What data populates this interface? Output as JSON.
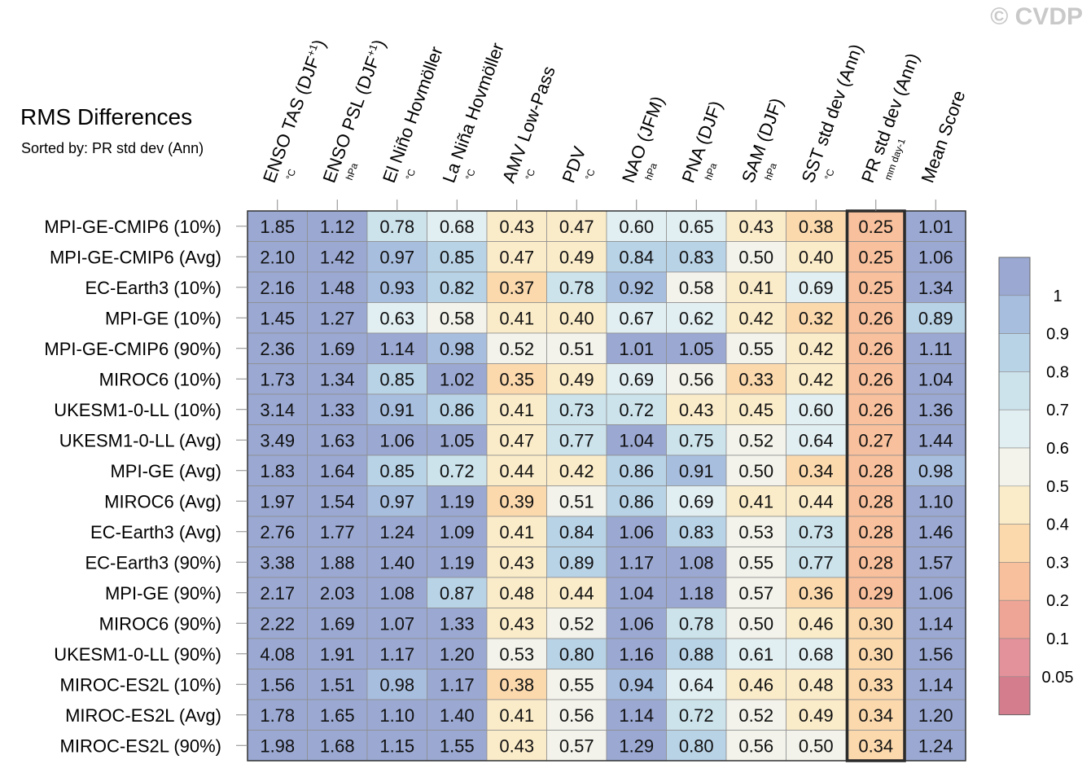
{
  "title": "RMS Differences",
  "subtitle": "Sorted by: PR std dev (Ann)",
  "watermark": "© CVDP",
  "chart_data": {
    "type": "heatmap",
    "columns": [
      {
        "name": "ENSO TAS (DJF+1)",
        "units": "°C"
      },
      {
        "name": "ENSO PSL (DJF+1)",
        "units": "hPa"
      },
      {
        "name": "El Niño Hovmöller",
        "units": "°C"
      },
      {
        "name": "La Niña Hovmöller",
        "units": "°C"
      },
      {
        "name": "AMV Low-Pass",
        "units": "°C"
      },
      {
        "name": "PDV",
        "units": "°C"
      },
      {
        "name": "NAO (JFM)",
        "units": "hPa"
      },
      {
        "name": "PNA (DJF)",
        "units": "hPa"
      },
      {
        "name": "SAM (DJF)",
        "units": "hPa"
      },
      {
        "name": "SST std dev (Ann)",
        "units": "°C"
      },
      {
        "name": "PR std dev (Ann)",
        "units": "mm day-1"
      },
      {
        "name": "Mean Score",
        "units": ""
      }
    ],
    "rows": [
      "MPI-GE-CMIP6 (10%)",
      "MPI-GE-CMIP6 (Avg)",
      "EC-Earth3 (10%)",
      "MPI-GE (10%)",
      "MPI-GE-CMIP6 (90%)",
      "MIROC6 (10%)",
      "UKESM1-0-LL (10%)",
      "UKESM1-0-LL (Avg)",
      "MPI-GE (Avg)",
      "MIROC6 (Avg)",
      "EC-Earth3 (Avg)",
      "EC-Earth3 (90%)",
      "MPI-GE (90%)",
      "MIROC6 (90%)",
      "UKESM1-0-LL (90%)",
      "MIROC-ES2L (10%)",
      "MIROC-ES2L (Avg)",
      "MIROC-ES2L (90%)"
    ],
    "values": [
      [
        "1.85",
        "1.12",
        "0.78",
        "0.68",
        "0.43",
        "0.47",
        "0.60",
        "0.65",
        "0.43",
        "0.38",
        "0.25",
        "1.01"
      ],
      [
        "2.10",
        "1.42",
        "0.97",
        "0.85",
        "0.47",
        "0.49",
        "0.84",
        "0.83",
        "0.50",
        "0.40",
        "0.25",
        "1.06"
      ],
      [
        "2.16",
        "1.48",
        "0.93",
        "0.82",
        "0.37",
        "0.78",
        "0.92",
        "0.58",
        "0.41",
        "0.69",
        "0.25",
        "1.34"
      ],
      [
        "1.45",
        "1.27",
        "0.63",
        "0.58",
        "0.41",
        "0.40",
        "0.67",
        "0.62",
        "0.42",
        "0.32",
        "0.26",
        "0.89"
      ],
      [
        "2.36",
        "1.69",
        "1.14",
        "0.98",
        "0.52",
        "0.51",
        "1.01",
        "1.05",
        "0.55",
        "0.42",
        "0.26",
        "1.11"
      ],
      [
        "1.73",
        "1.34",
        "0.85",
        "1.02",
        "0.35",
        "0.49",
        "0.69",
        "0.56",
        "0.33",
        "0.42",
        "0.26",
        "1.04"
      ],
      [
        "3.14",
        "1.33",
        "0.91",
        "0.86",
        "0.41",
        "0.73",
        "0.72",
        "0.43",
        "0.45",
        "0.60",
        "0.26",
        "1.36"
      ],
      [
        "3.49",
        "1.63",
        "1.06",
        "1.05",
        "0.47",
        "0.77",
        "1.04",
        "0.75",
        "0.52",
        "0.64",
        "0.27",
        "1.44"
      ],
      [
        "1.83",
        "1.64",
        "0.85",
        "0.72",
        "0.44",
        "0.42",
        "0.86",
        "0.91",
        "0.50",
        "0.34",
        "0.28",
        "0.98"
      ],
      [
        "1.97",
        "1.54",
        "0.97",
        "1.19",
        "0.39",
        "0.51",
        "0.86",
        "0.69",
        "0.41",
        "0.44",
        "0.28",
        "1.10"
      ],
      [
        "2.76",
        "1.77",
        "1.24",
        "1.09",
        "0.41",
        "0.84",
        "1.06",
        "0.83",
        "0.53",
        "0.73",
        "0.28",
        "1.46"
      ],
      [
        "3.38",
        "1.88",
        "1.40",
        "1.19",
        "0.43",
        "0.89",
        "1.17",
        "1.08",
        "0.55",
        "0.77",
        "0.28",
        "1.57"
      ],
      [
        "2.17",
        "2.03",
        "1.08",
        "0.87",
        "0.48",
        "0.44",
        "1.04",
        "1.18",
        "0.57",
        "0.36",
        "0.29",
        "1.06"
      ],
      [
        "2.22",
        "1.69",
        "1.07",
        "1.33",
        "0.43",
        "0.52",
        "1.06",
        "0.78",
        "0.50",
        "0.46",
        "0.30",
        "1.14"
      ],
      [
        "4.08",
        "1.91",
        "1.17",
        "1.20",
        "0.53",
        "0.80",
        "1.16",
        "0.88",
        "0.61",
        "0.68",
        "0.30",
        "1.56"
      ],
      [
        "1.56",
        "1.51",
        "0.98",
        "1.17",
        "0.38",
        "0.55",
        "0.94",
        "0.64",
        "0.46",
        "0.48",
        "0.33",
        "1.14"
      ],
      [
        "1.78",
        "1.65",
        "1.10",
        "1.40",
        "0.41",
        "0.56",
        "1.14",
        "0.72",
        "0.52",
        "0.49",
        "0.34",
        "1.20"
      ],
      [
        "1.98",
        "1.68",
        "1.15",
        "1.55",
        "0.43",
        "0.57",
        "1.29",
        "0.80",
        "0.56",
        "0.50",
        "0.34",
        "1.24"
      ]
    ],
    "highlighted_column": "PR std dev (Ann)",
    "colorbar": {
      "labels": [
        "1",
        "0.9",
        "0.8",
        "0.7",
        "0.6",
        "0.5",
        "0.4",
        "0.3",
        "0.2",
        "0.1",
        "0.05"
      ],
      "colors": [
        "#9aa8d2",
        "#a8bedf",
        "#b8d2e6",
        "#cce3ec",
        "#e2eff2",
        "#f3f3eb",
        "#fbecc9",
        "#fbd9ad",
        "#f8c09c",
        "#eea596",
        "#e3919a",
        "#d47d8d"
      ]
    }
  }
}
